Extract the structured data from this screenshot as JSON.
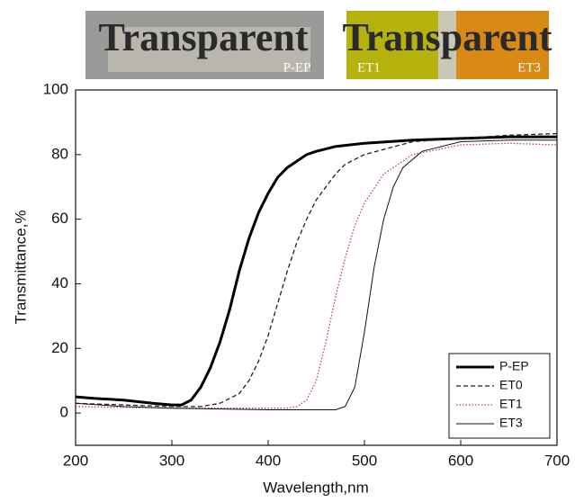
{
  "chart_data": {
    "type": "line",
    "xlabel": "Wavelength,nm",
    "ylabel": "Transmittance,%",
    "xlim": [
      200,
      700
    ],
    "xticks": [
      200,
      300,
      400,
      500,
      600,
      700
    ],
    "ylim": [
      -10,
      100
    ],
    "yticks": [
      0,
      20,
      40,
      60,
      80,
      100
    ],
    "legend": "lower right",
    "annotations": [
      "Transparent",
      "P-EP",
      "Transparent",
      "ET1",
      "ET3"
    ],
    "series": [
      {
        "name": "P-EP",
        "color": "#000000",
        "line_style": "solid",
        "line_width": 3,
        "x": [
          200,
          220,
          250,
          280,
          300,
          310,
          320,
          330,
          340,
          350,
          360,
          370,
          380,
          390,
          400,
          410,
          420,
          430,
          440,
          450,
          470,
          500,
          550,
          600,
          650,
          700
        ],
        "values": [
          5,
          4.5,
          4,
          3,
          2.5,
          2.5,
          4,
          8,
          14,
          22,
          32,
          44,
          54,
          62,
          68,
          73,
          76,
          78,
          80,
          81,
          82.5,
          83.5,
          84.5,
          85,
          85.5,
          85.5
        ]
      },
      {
        "name": "ET0",
        "color": "#222222",
        "line_style": "dashed",
        "line_width": 1.3,
        "x": [
          200,
          250,
          300,
          330,
          350,
          370,
          380,
          390,
          400,
          410,
          420,
          430,
          440,
          450,
          460,
          470,
          480,
          500,
          550,
          600,
          650,
          700
        ],
        "values": [
          3,
          2.5,
          2,
          2,
          3,
          6,
          10,
          16,
          24,
          34,
          44,
          53,
          60,
          66,
          70,
          74,
          77,
          80,
          84,
          85,
          86,
          86.5
        ]
      },
      {
        "name": "ET1",
        "color": "#b04a3a",
        "line_style": "dotted",
        "line_width": 1.3,
        "x": [
          200,
          300,
          400,
          420,
          430,
          440,
          450,
          460,
          470,
          480,
          490,
          500,
          520,
          550,
          600,
          650,
          700
        ],
        "values": [
          2,
          1.5,
          1.5,
          1.5,
          2,
          4,
          10,
          22,
          36,
          48,
          58,
          65,
          74,
          80,
          83,
          83.5,
          83
        ]
      },
      {
        "name": "ET3",
        "color": "#111111",
        "line_style": "solid",
        "line_width": 1,
        "x": [
          200,
          250,
          300,
          400,
          470,
          480,
          490,
          500,
          510,
          520,
          530,
          540,
          560,
          600,
          650,
          700
        ],
        "values": [
          3,
          2,
          1.5,
          1,
          1,
          2,
          8,
          25,
          45,
          60,
          70,
          76,
          81,
          84,
          84.5,
          84.5
        ]
      }
    ]
  }
}
